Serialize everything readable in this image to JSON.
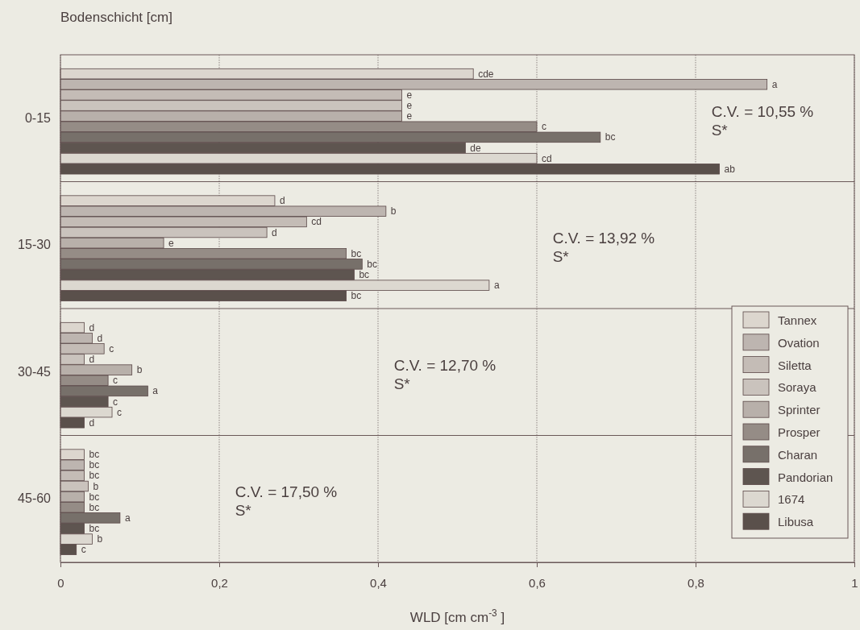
{
  "chart_data": {
    "type": "bar",
    "orientation": "horizontal",
    "ylabel": "Bodenschicht [cm]",
    "xlabel": "WLD [cm cm$^{-3}$ ]",
    "categories": [
      "0-15",
      "15-30",
      "30-45",
      "45-60"
    ],
    "xlim": [
      0,
      1
    ],
    "xticks": [
      0,
      {
        "value": 0.2,
        "label": "0,2"
      },
      {
        "value": 0.4,
        "label": "0,4"
      },
      {
        "value": 0.6,
        "label": "0,6"
      },
      {
        "value": 0.8,
        "label": "0,8"
      },
      1
    ],
    "grid": true,
    "legend": "bottom right",
    "series": [
      {
        "name": "Tannex",
        "color": "#dcd6ce",
        "values": [
          0.52,
          0.27,
          0.03,
          0.03
        ],
        "value_labels": [
          "cde",
          "d",
          "d",
          "bc"
        ]
      },
      {
        "name": "Ovation",
        "color": "#bdb5b0",
        "values": [
          0.89,
          0.41,
          0.04,
          0.03
        ],
        "value_labels": [
          "a",
          "b",
          "d",
          "bc"
        ]
      },
      {
        "name": "Siletta",
        "color": "#c4bcb6",
        "values": [
          0.43,
          0.31,
          0.055,
          0.03
        ],
        "value_labels": [
          "e",
          "cd",
          "c",
          "bc"
        ]
      },
      {
        "name": "Soraya",
        "color": "#cac3bd",
        "values": [
          0.43,
          0.26,
          0.03,
          0.035
        ],
        "value_labels": [
          "e",
          "d",
          "d",
          "b"
        ]
      },
      {
        "name": "Sprinter",
        "color": "#b8b0aa",
        "values": [
          0.43,
          0.13,
          0.09,
          0.03
        ],
        "value_labels": [
          "e",
          "e",
          "b",
          "bc"
        ]
      },
      {
        "name": "Prosper",
        "color": "#958c86",
        "values": [
          0.6,
          0.36,
          0.06,
          0.03
        ],
        "value_labels": [
          "c",
          "bc",
          "c",
          "bc"
        ]
      },
      {
        "name": "Charan",
        "color": "#77706a",
        "values": [
          0.68,
          0.38,
          0.11,
          0.075
        ],
        "value_labels": [
          "bc",
          "bc",
          "a",
          "a"
        ]
      },
      {
        "name": "Pandorian",
        "color": "#5e5550",
        "values": [
          0.51,
          0.37,
          0.06,
          0.03
        ],
        "value_labels": [
          "de",
          "bc",
          "c",
          "bc"
        ]
      },
      {
        "name": "1674",
        "color": "#dcd8d0",
        "values": [
          0.6,
          0.54,
          0.065,
          0.04
        ],
        "value_labels": [
          "cd",
          "a",
          "c",
          "b"
        ]
      },
      {
        "name": "Libusa",
        "color": "#5a504b",
        "values": [
          0.83,
          0.36,
          0.03,
          0.02
        ],
        "value_labels": [
          "ab",
          "bc",
          "d",
          "c"
        ]
      }
    ],
    "annotations": [
      "C.V. = 10,55 %\nS*",
      "C.V. = 13,92 %\nS*",
      "C.V. = 12,70 %\nS*",
      "C.V. = 17,50 %\nS*"
    ]
  }
}
